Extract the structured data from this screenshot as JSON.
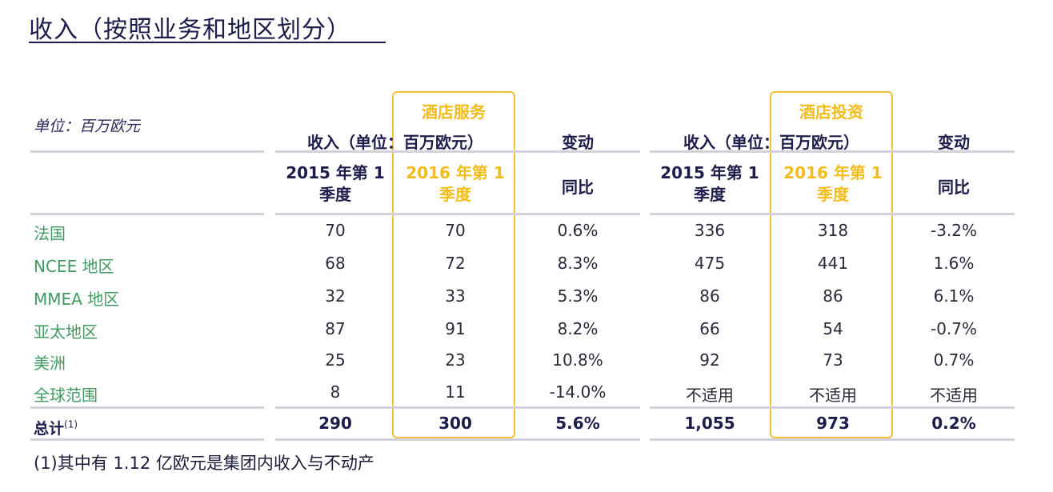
{
  "title": "收入（按照业务和地区划分）",
  "unit": "单位：百万欧元",
  "groups": [
    {
      "name": "酒店服务",
      "revenue_header": "收入（单位：百万欧元）",
      "change_header": "变动",
      "col_2015": [
        "2015 年第 1",
        "季度"
      ],
      "col_2016": [
        "2016 年第 1",
        "季度"
      ],
      "col_change": "同比"
    },
    {
      "name": "酒店投资",
      "revenue_header": "收入（单位：百万欧元）",
      "change_header": "变动",
      "col_2015": [
        "2015 年第 1",
        "季度"
      ],
      "col_2016": [
        "2016 年第 1",
        "季度"
      ],
      "col_change": "同比"
    }
  ],
  "rows": [
    {
      "label": "法国",
      "values": [
        "70",
        "70",
        "0.6%",
        "336",
        "318",
        "-3.2%"
      ]
    },
    {
      "label": "NCEE 地区",
      "values": [
        "68",
        "72",
        "8.3%",
        "475",
        "441",
        "1.6%"
      ]
    },
    {
      "label": "MMEA 地区",
      "values": [
        "32",
        "33",
        "5.3%",
        "86",
        "86",
        "6.1%"
      ]
    },
    {
      "label": "亚太地区",
      "values": [
        "87",
        "91",
        "8.2%",
        "66",
        "54",
        "-0.7%"
      ]
    },
    {
      "label": "美洲",
      "values": [
        "25",
        "23",
        "10.8%",
        "92",
        "73",
        "0.7%"
      ]
    },
    {
      "label": "全球范围",
      "values": [
        "8",
        "11",
        "-14.0%",
        "不适用",
        "不适用",
        "不适用"
      ]
    }
  ],
  "total": {
    "label": "总计",
    "note_mark": "(1)",
    "values": [
      "290",
      "300",
      "5.6%",
      "1,055",
      "973",
      "0.2%"
    ]
  },
  "footnote": "(1)其中有 1.12 亿欧元是集团内收入与不动产",
  "colors": {
    "navy": "#1d1d4c",
    "gold": "#f3bc1a",
    "green": "#3f9a60",
    "rule": "#d2d2dc"
  }
}
